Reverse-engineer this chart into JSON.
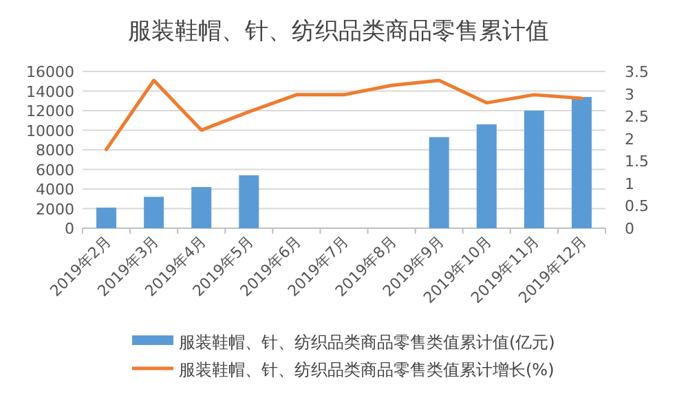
{
  "chart_data": {
    "type": "bar",
    "title": "服装鞋帽、针、纺织品类商品零售累计值",
    "categories": [
      "2019年2月",
      "2019年3月",
      "2019年4月",
      "2019年5月",
      "2019年6月",
      "2019年7月",
      "2019年8月",
      "2019年9月",
      "2019年10月",
      "2019年11月",
      "2019年12月"
    ],
    "series": [
      {
        "name": "服装鞋帽、针、纺织品类商品零售类值累计值(亿元)",
        "color": "#5b9bd5",
        "values": [
          2100,
          3200,
          4200,
          5400,
          null,
          null,
          null,
          9300,
          10600,
          12000,
          13400
        ]
      },
      {
        "name": "服装鞋帽、针、纺织品类商品零售类值累计增长(%)",
        "type": "line",
        "axis": "y2",
        "color": "#ed7d31",
        "values": [
          1.76,
          3.3,
          2.19,
          2.6,
          2.98,
          2.98,
          3.19,
          3.3,
          2.8,
          2.98,
          2.9
        ]
      }
    ],
    "ylim": [
      0,
      16000
    ],
    "yticks": [
      0,
      2000,
      4000,
      6000,
      8000,
      10000,
      12000,
      14000,
      16000
    ],
    "y2lim": [
      0,
      3.5
    ],
    "y2ticks": [
      0,
      0.5,
      1,
      1.5,
      2,
      2.5,
      3,
      3.5
    ],
    "grid": "y",
    "legend": "bottom",
    "marker": "none",
    "line_style": "solid"
  }
}
